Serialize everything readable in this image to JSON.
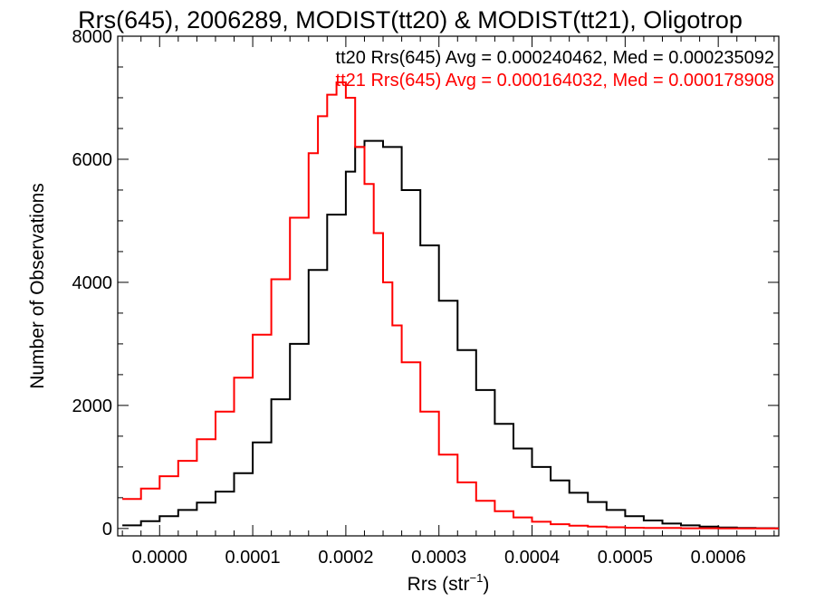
{
  "chart_data": {
    "type": "line",
    "title": "Rrs(645), 2006289, MODIST(tt20) & MODIST(tt21), Oligotrop",
    "xlabel_main": "Rrs (str",
    "xlabel_sup": "−1",
    "xlabel_close": ")",
    "ylabel": "Number of Observations",
    "xlim": [
      -4.5e-05,
      0.000665
    ],
    "ylim": [
      -120,
      8000
    ],
    "x_ticks": [
      0.0,
      0.0001,
      0.0002,
      0.0003,
      0.0004,
      0.0005,
      0.0006
    ],
    "x_tick_labels": [
      "0.0000",
      "0.0001",
      "0.0002",
      "0.0003",
      "0.0004",
      "0.0005",
      "0.0006"
    ],
    "y_ticks": [
      0,
      2000,
      4000,
      6000,
      8000
    ],
    "y_tick_labels": [
      "0",
      "2000",
      "4000",
      "6000",
      "8000"
    ],
    "grid": false,
    "legend_position": "top-right",
    "colors": {
      "tt20": "#000000",
      "tt21": "#ff0000"
    },
    "series": [
      {
        "name": "tt20",
        "stats_text": "tt20 Rrs(645) Avg = 0.000240462, Med = 0.000235092",
        "color": "#000000",
        "x": [
          -4e-05,
          -2e-05,
          0.0,
          2e-05,
          4e-05,
          6e-05,
          8e-05,
          0.0001,
          0.00012,
          0.00014,
          0.00016,
          0.00018,
          0.0002,
          0.00021,
          0.00022,
          0.00023,
          0.00024,
          0.00026,
          0.00028,
          0.0003,
          0.00032,
          0.00034,
          0.00036,
          0.00038,
          0.0004,
          0.00042,
          0.00044,
          0.00046,
          0.00048,
          0.0005,
          0.00052,
          0.00054,
          0.00056,
          0.00058,
          0.0006,
          0.00062,
          0.00064,
          0.00066
        ],
        "y": [
          50,
          120,
          200,
          300,
          420,
          600,
          900,
          1400,
          2100,
          3000,
          4200,
          5100,
          5800,
          6200,
          6300,
          6300,
          6200,
          5500,
          4600,
          3700,
          2900,
          2250,
          1700,
          1300,
          1000,
          780,
          580,
          430,
          300,
          200,
          130,
          80,
          50,
          30,
          15,
          10,
          5,
          3
        ]
      },
      {
        "name": "tt21",
        "stats_text": "tt21 Rrs(645) Avg = 0.000164032, Med = 0.000178908",
        "color": "#ff0000",
        "x": [
          -4e-05,
          -2e-05,
          0.0,
          2e-05,
          4e-05,
          6e-05,
          8e-05,
          0.0001,
          0.00012,
          0.00014,
          0.00016,
          0.00017,
          0.00018,
          0.00019,
          0.0002,
          0.00021,
          0.00022,
          0.00023,
          0.00024,
          0.00025,
          0.00026,
          0.00028,
          0.0003,
          0.00032,
          0.00034,
          0.00036,
          0.00038,
          0.0004,
          0.00042,
          0.00044,
          0.00046,
          0.00048,
          0.0005,
          0.00052,
          0.00056,
          0.0006,
          0.00066
        ],
        "y": [
          480,
          650,
          850,
          1100,
          1450,
          1900,
          2450,
          3150,
          4050,
          5050,
          6100,
          6700,
          7050,
          7250,
          7000,
          6200,
          5600,
          4800,
          4000,
          3300,
          2700,
          1900,
          1200,
          750,
          450,
          280,
          180,
          110,
          70,
          45,
          30,
          20,
          12,
          8,
          4,
          2,
          1
        ]
      }
    ]
  }
}
